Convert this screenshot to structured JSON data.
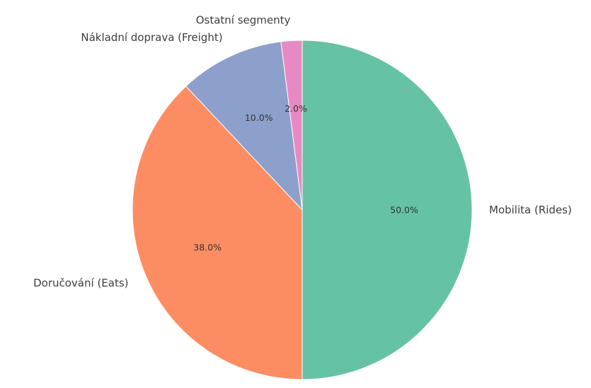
{
  "chart_data": {
    "type": "pie",
    "title": "",
    "start_angle_deg": 90,
    "direction": "clockwise",
    "slices": [
      {
        "label": "Mobilita (Rides)",
        "value": 50.0,
        "pct_label": "50.0%",
        "color": "#66c2a5"
      },
      {
        "label": "Doručování (Eats)",
        "value": 38.0,
        "pct_label": "38.0%",
        "color": "#fc8d62"
      },
      {
        "label": "Nákladní doprava (Freight)",
        "value": 10.0,
        "pct_label": "10.0%",
        "color": "#8da0cb"
      },
      {
        "label": "Ostatní segmenty",
        "value": 2.0,
        "pct_label": "2.0%",
        "color": "#e78ac3"
      }
    ]
  }
}
